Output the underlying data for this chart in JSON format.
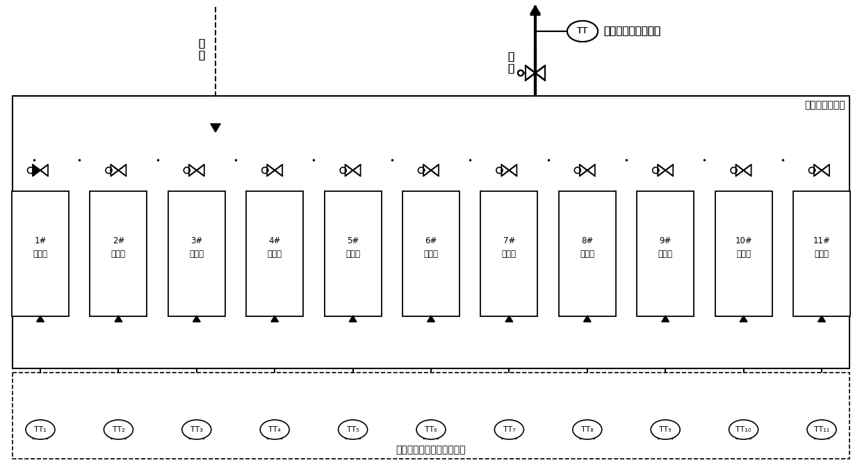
{
  "bg_color": "#ffffff",
  "line_color": "#000000",
  "num_exchangers": 11,
  "fig_width": 12.4,
  "fig_height": 6.79,
  "label_heatexchanger_group": "合成区换热器组",
  "label_bottom": "各换热器工艺介质温度检测",
  "label_feedwater": "给\n水",
  "label_returnwater": "回\n水",
  "label_tt_main": "合成区总回水温检测",
  "exchanger_labels": [
    "1#\n换热器",
    "2#\n换热器",
    "3#\n换热器",
    "4#\n换热器",
    "5#\n换热器",
    "6#\n换热器",
    "7#\n换热器",
    "8#\n换热器",
    "9#\n换热器",
    "10#\n换热器",
    "11#\n换热器"
  ],
  "tt_labels": [
    "TT₁",
    "TT₂",
    "TT₃",
    "TT₄",
    "TT₅",
    "TT₆",
    "TT₇",
    "TT₈",
    "TT₉",
    "TT₁₀",
    "TT₁₁"
  ]
}
